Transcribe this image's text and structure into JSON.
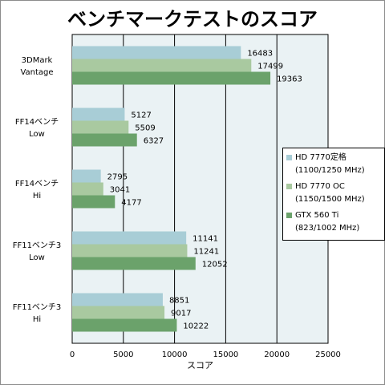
{
  "chart_data": {
    "type": "bar",
    "orientation": "horizontal",
    "title": "ベンチマークテストのスコア",
    "xlabel": "スコア",
    "ylabel": "",
    "xlim": [
      0,
      25000
    ],
    "ticks": [
      0,
      5000,
      10000,
      15000,
      20000,
      25000
    ],
    "grid": true,
    "legend_position": "right",
    "categories": [
      [
        "3DMark",
        "Vantage"
      ],
      [
        "FF14ベンチ",
        "Low"
      ],
      [
        "FF14ベンチ",
        "Hi"
      ],
      [
        "FF11ベンチ3",
        "Low"
      ],
      [
        "FF11ベンチ3",
        "Hi"
      ]
    ],
    "series": [
      {
        "name_lines": [
          "HD 7770定格",
          "(1100/1250 MHz)"
        ],
        "color": "#a8cdd6",
        "values": [
          16483,
          5127,
          2795,
          11141,
          8851
        ]
      },
      {
        "name_lines": [
          "HD 7770 OC",
          "(1150/1500 MHz)"
        ],
        "color": "#a9c9a0",
        "values": [
          17499,
          5509,
          3041,
          11241,
          9017
        ]
      },
      {
        "name_lines": [
          "GTX 560 Ti",
          "(823/1002 MHz)"
        ],
        "color": "#6ba26b",
        "values": [
          19363,
          6327,
          4177,
          12052,
          10222
        ]
      }
    ],
    "plot_background": "#eaf2f4"
  }
}
